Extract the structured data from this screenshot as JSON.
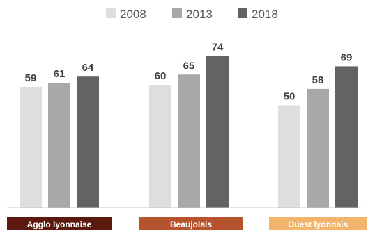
{
  "chart_data": {
    "type": "bar",
    "categories": [
      "Agglo lyonnaise",
      "Beaujolais",
      "Ouest lyonnais"
    ],
    "category_colors": [
      "#5c1a0e",
      "#b5532f",
      "#f2b36b"
    ],
    "series": [
      {
        "name": "2008",
        "color": "#dedede",
        "values": [
          59,
          60,
          50
        ]
      },
      {
        "name": "2013",
        "color": "#a8a8a8",
        "values": [
          61,
          65,
          58
        ]
      },
      {
        "name": "2018",
        "color": "#636363",
        "values": [
          64,
          74,
          69
        ]
      }
    ],
    "ylim": [
      0,
      80
    ],
    "grid": false,
    "legend_position": "top-center",
    "value_labels": true
  }
}
